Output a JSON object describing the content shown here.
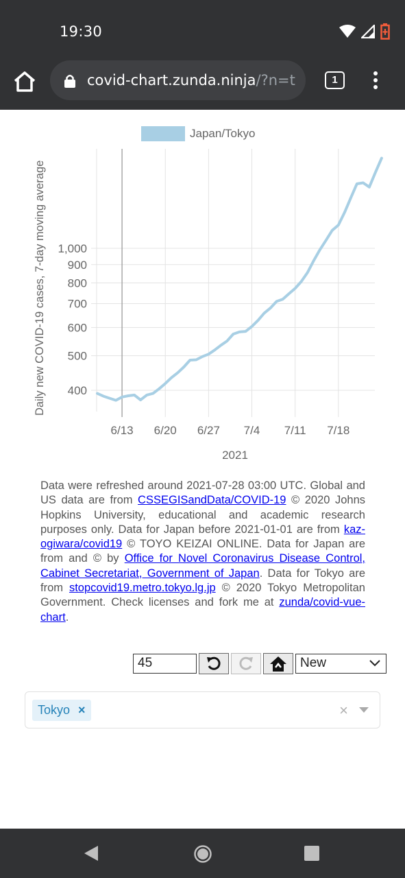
{
  "status": {
    "time": "19:30"
  },
  "browser": {
    "url_main": "covid-chart.zunda.ninja",
    "url_rest": "/?n=t",
    "tab_count": "1"
  },
  "chart_data": {
    "type": "line",
    "legend": "Japan/Tokyo",
    "ylabel": "Daily new COVID-19 cases, 7-day moving average",
    "xlabel": "2021",
    "y_scale": "log",
    "y_ticks": [
      "400",
      "500",
      "600",
      "700",
      "800",
      "900",
      "1,000"
    ],
    "x_ticks": [
      "6/13",
      "6/20",
      "6/27",
      "7/4",
      "7/11",
      "7/18"
    ],
    "color": "#a8cfe4",
    "series": [
      {
        "name": "Japan/Tokyo",
        "x": [
          "6/9",
          "6/10",
          "6/11",
          "6/12",
          "6/13",
          "6/14",
          "6/15",
          "6/16",
          "6/17",
          "6/18",
          "6/19",
          "6/20",
          "6/21",
          "6/22",
          "6/23",
          "6/24",
          "6/25",
          "6/26",
          "6/27",
          "6/28",
          "6/29",
          "6/30",
          "7/1",
          "7/2",
          "7/3",
          "7/4",
          "7/5",
          "7/6",
          "7/7",
          "7/8",
          "7/9",
          "7/10",
          "7/11",
          "7/12",
          "7/13",
          "7/14",
          "7/15",
          "7/16",
          "7/17",
          "7/18",
          "7/19",
          "7/20",
          "7/21",
          "7/22",
          "7/23",
          "7/24",
          "7/25"
        ],
        "values": [
          392,
          385,
          380,
          375,
          383,
          386,
          388,
          376,
          388,
          392,
          404,
          418,
          434,
          448,
          465,
          486,
          487,
          497,
          505,
          519,
          535,
          550,
          575,
          583,
          585,
          604,
          628,
          658,
          680,
          710,
          720,
          746,
          772,
          807,
          855,
          923,
          990,
          1053,
          1123,
          1162,
          1260,
          1383,
          1516,
          1526,
          1485,
          1633,
          1789
        ]
      }
    ]
  },
  "notes": {
    "p1": "Data were refreshed around 2021-07-28 03:00 UTC. Global and US data are from ",
    "link1": "CSSEGISandData/COVID-19",
    "p2": " © 2020 Johns Hopkins University, educational and academic research purposes only. Data for Japan before 2021-01-01 are from ",
    "link2": "kaz-ogiwara/covid19",
    "p3": " © TOYO KEIZAI ONLINE. Data for Japan are from and © by ",
    "link3": "Office for Novel Coronavirus Disease Control, Cabinet Secretariat, Government of Japan",
    "p4": ". Data for Tokyo are from ",
    "link4": "stopcovid19.metro.tokyo.lg.jp",
    "p5": " © 2020 Tokyo Metropolitan Government. Check licenses and fork me at ",
    "link5": "zunda/covid-vue-chart",
    "p6": "."
  },
  "controls": {
    "days": "45",
    "mode": "New"
  },
  "filter": {
    "tag": "Tokyo",
    "tag_remove": "×",
    "clear": "×"
  }
}
